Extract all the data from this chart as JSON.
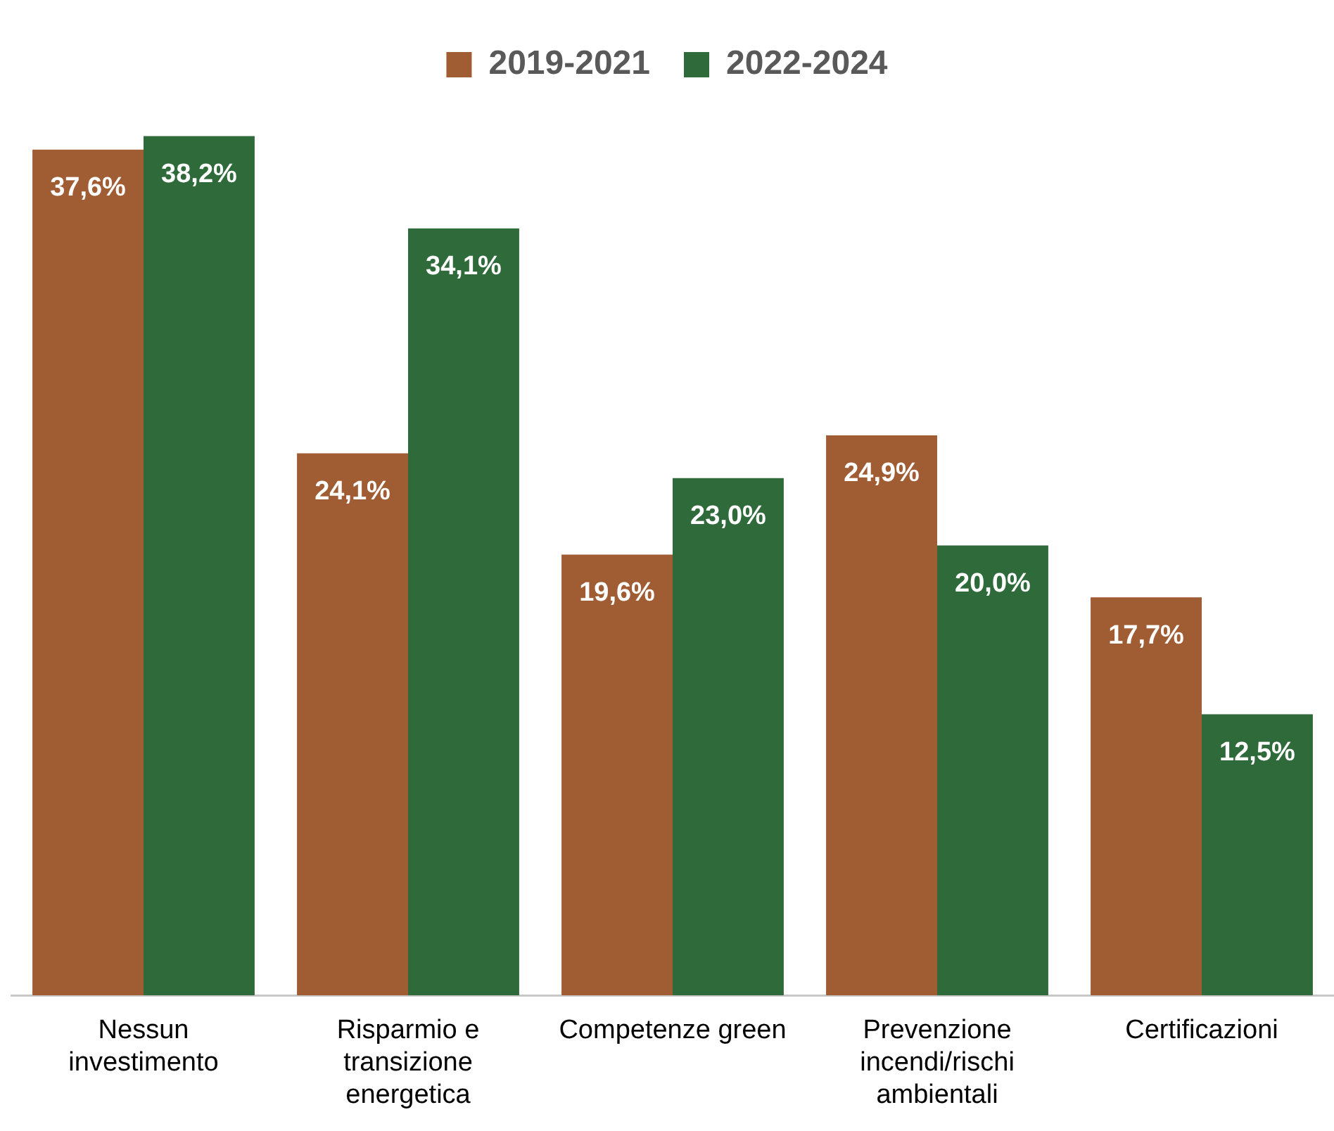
{
  "chart_data": {
    "type": "bar",
    "categories": [
      "Nessun investimento",
      "Risparmio e transizione energetica",
      "Competenze green",
      "Prevenzione incendi/rischi ambientali",
      "Certificazioni"
    ],
    "series": [
      {
        "name": "2019-2021",
        "color": "#a05c32",
        "values": [
          37.6,
          24.1,
          19.6,
          24.9,
          17.7
        ],
        "value_labels": [
          "37,6%",
          "24,1%",
          "19,6%",
          "24,9%",
          "17,7%"
        ]
      },
      {
        "name": "2022-2024",
        "color": "#2f6b3a",
        "values": [
          38.2,
          34.1,
          23.0,
          20.0,
          12.5
        ],
        "value_labels": [
          "38,2%",
          "34,1%",
          "23,0%",
          "20,0%",
          "12,5%"
        ]
      }
    ],
    "relative": false,
    "legend": "top",
    "grid": false
  }
}
